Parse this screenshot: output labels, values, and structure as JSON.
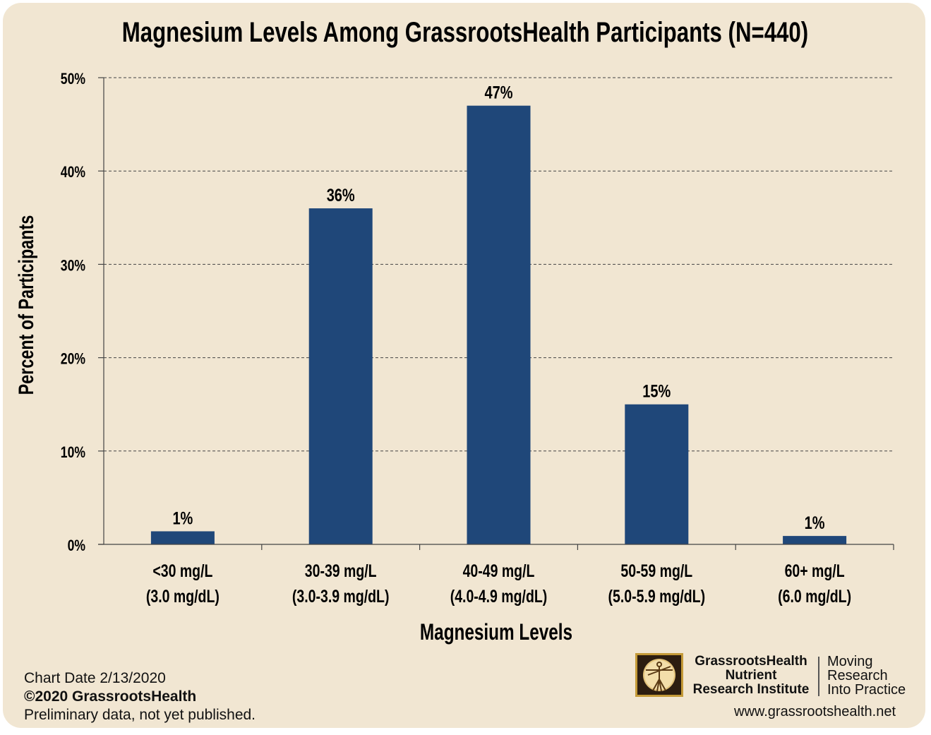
{
  "chart_data": {
    "type": "bar",
    "title": "Magnesium Levels Among GrassrootsHealth Participants (N=440)",
    "xlabel": "Magnesium Levels",
    "ylabel": "Percent of Participants",
    "categories": [
      [
        "<30 mg/L",
        "(3.0 mg/dL)"
      ],
      [
        "30-39 mg/L",
        "(3.0-3.9 mg/dL)"
      ],
      [
        "40-49 mg/L",
        "(4.0-4.9 mg/dL)"
      ],
      [
        "50-59 mg/L",
        "(5.0-5.9 mg/dL)"
      ],
      [
        "60+ mg/L",
        "(6.0 mg/dL)"
      ]
    ],
    "values": [
      1.4,
      36,
      47,
      15,
      0.9
    ],
    "data_labels": [
      "1%",
      "36%",
      "47%",
      "15%",
      "1%"
    ],
    "ylim": [
      0,
      50
    ],
    "yticks": [
      0,
      10,
      20,
      30,
      40,
      50
    ],
    "ytick_labels": [
      "0%",
      "10%",
      "20%",
      "30%",
      "40%",
      "50%"
    ],
    "grid": true,
    "bar_color": "#1f4779",
    "background_color": "#f1e6d2"
  },
  "footer": {
    "chart_date": "Chart Date 2/13/2020",
    "copyright": "©2020 GrassrootsHealth",
    "note": "Preliminary data, not yet published."
  },
  "logo": {
    "org_line1": "GrassrootsHealth",
    "org_line2": "Nutrient",
    "org_line3": "Research Institute",
    "tagline_line1": "Moving",
    "tagline_line2": "Research",
    "tagline_line3": "Into Practice",
    "website": "www.grassrootshealth.net",
    "icon": "vitruvian-man-icon"
  }
}
